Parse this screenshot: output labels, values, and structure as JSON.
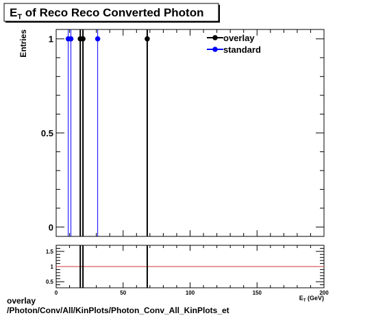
{
  "title": {
    "main": "E",
    "sub": "T",
    "rest": " of Reco Reco Converted Photon"
  },
  "footer": {
    "line1": "overlay",
    "line2": "/Photon/Conv/All/KinPlots/Photon_Conv_All_KinPlots_et"
  },
  "colors": {
    "overlay": "#000000",
    "standard": "#0000ff",
    "ratio_line": "#cc3333",
    "frame": "#000000"
  },
  "chart_data": [
    {
      "type": "scatter",
      "ylabel": "Entries",
      "xlim": [
        0,
        200
      ],
      "ylim": [
        -0.05,
        1.05
      ],
      "y_ticks": [
        0,
        0.5,
        1
      ],
      "y_tick_labels": [
        "0",
        "0.5",
        "1"
      ],
      "legend": {
        "placement": "top-right"
      },
      "series": [
        {
          "name": "overlay",
          "x": [
            18,
            20,
            68
          ],
          "y": [
            1,
            1,
            1
          ]
        },
        {
          "name": "standard",
          "x": [
            9,
            11,
            31
          ],
          "y": [
            1,
            1,
            1
          ]
        }
      ]
    },
    {
      "type": "line",
      "xlabel": "E_{T} (GeV)",
      "xlim": [
        0,
        200
      ],
      "ylim": [
        0.3,
        1.7
      ],
      "x_ticks": [
        0,
        50,
        100,
        150,
        200
      ],
      "x_tick_labels": [
        "0",
        "50",
        "100",
        "150",
        "200"
      ],
      "y_ticks": [
        0.5,
        1,
        1.5
      ],
      "y_tick_labels": [
        "0.5",
        "1",
        "1.5"
      ],
      "reference_y": 1,
      "spikes_x": [
        18,
        20,
        68
      ]
    }
  ]
}
